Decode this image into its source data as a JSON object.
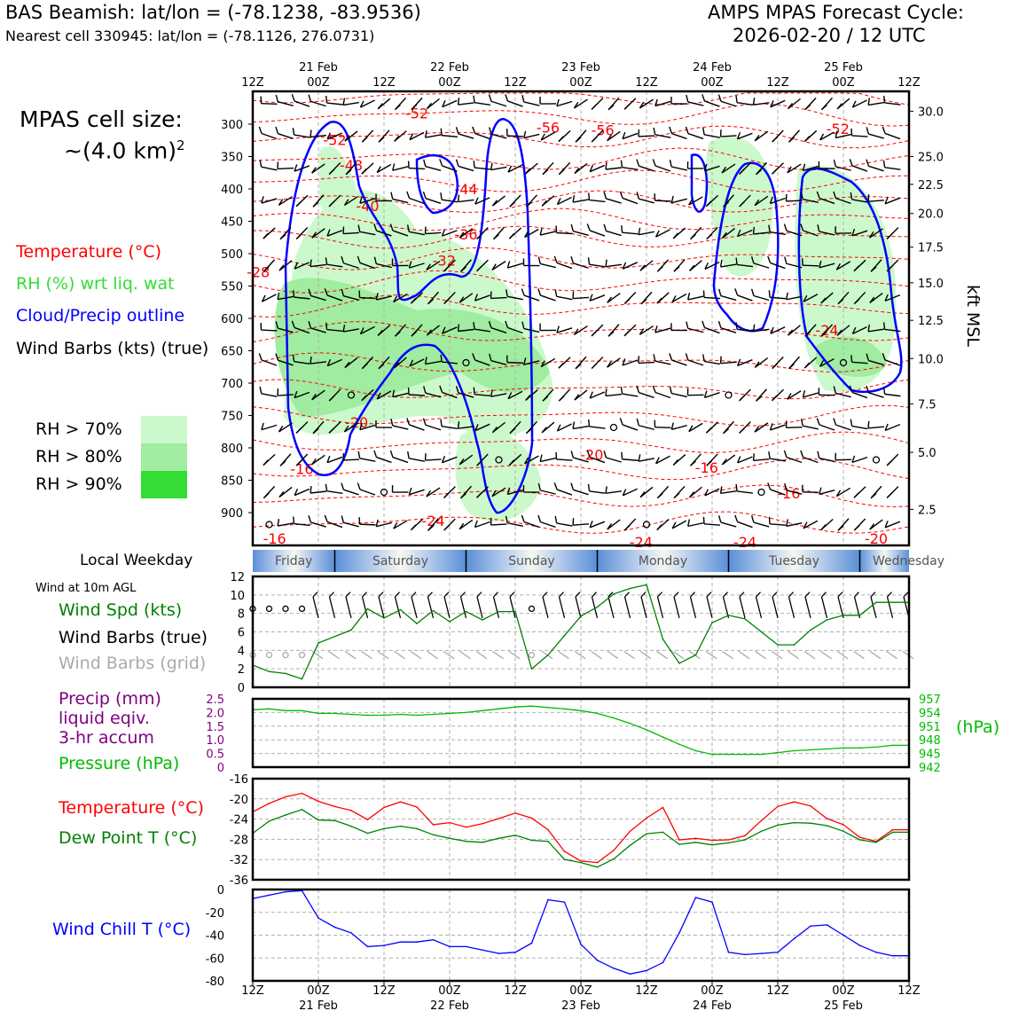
{
  "header": {
    "station_line": "BAS Beamish: lat/lon = (-78.1238, -83.9536)",
    "nearest_line": "Nearest cell 330945: lat/lon = (-78.1126, 276.0731)",
    "cycle_line1": "AMPS MPAS Forecast Cycle:",
    "cycle_line2": "2026-02-20 / 12 UTC"
  },
  "legend": {
    "cell_size_line1": "MPAS cell size:",
    "cell_size_line2": "~(4.0 km)",
    "cell_size_sup": "2",
    "temperature": "Temperature (°C)",
    "rh": "RH (%) wrt liq. wat",
    "cloud": "Cloud/Precip outline",
    "barbs": "Wind Barbs (kts) (true)",
    "rh_levels": [
      {
        "label": "RH > 70%",
        "color": "#ccf9cc"
      },
      {
        "label": "RH > 80%",
        "color": "#a0eca0"
      },
      {
        "label": "RH > 90%",
        "color": "#33dd33"
      }
    ],
    "local_weekday": "Local Weekday",
    "wind_10m": "Wind at 10m AGL",
    "wind_spd": "Wind Spd (kts)",
    "wind_barbs_true": "Wind Barbs (true)",
    "wind_barbs_grid": "Wind Barbs (grid)",
    "precip_line1": "Precip (mm)",
    "precip_line2": "liquid eqiv.",
    "precip_line3": "3-hr accum",
    "pressure": "Pressure (hPa)",
    "temp2": "Temperature (°C)",
    "dewpoint": "Dew Point T (°C)",
    "windchill": "Wind Chill T (°C)"
  },
  "colors": {
    "temperature": "#ff0000",
    "rh": "#33dd33",
    "cloud": "#0000ff",
    "dewpoint": "#008000",
    "pressure": "#00bb00",
    "precip": "#800080",
    "windchill": "#0000ff",
    "grid_barbs": "#aaaaaa"
  },
  "chart_data": {
    "time_axis": {
      "top_labels": [
        "12Z",
        "00Z",
        "12Z",
        "00Z",
        "12Z",
        "00Z",
        "12Z",
        "00Z",
        "12Z",
        "00Z",
        "12Z"
      ],
      "date_labels": [
        "21 Feb",
        "22 Feb",
        "23 Feb",
        "24 Feb",
        "25 Feb"
      ],
      "hours": [
        0,
        12,
        24,
        36,
        48,
        60,
        72,
        84,
        96,
        108,
        120
      ]
    },
    "weekdays": [
      "Friday",
      "Saturday",
      "Sunday",
      "Monday",
      "Tuesday",
      "Wednesday"
    ],
    "cross_section": {
      "type": "contour",
      "y_axis_label": "kft MSL",
      "pressure_ticks": [
        300,
        350,
        400,
        450,
        500,
        550,
        600,
        650,
        700,
        750,
        800,
        850,
        900
      ],
      "height_ticks": [
        {
          "kft": "30.0",
          "p": 280
        },
        {
          "kft": "25.0",
          "p": 350
        },
        {
          "kft": "22.5",
          "p": 393
        },
        {
          "kft": "20.0",
          "p": 438
        },
        {
          "kft": "17.5",
          "p": 490
        },
        {
          "kft": "15.0",
          "p": 545
        },
        {
          "kft": "12.5",
          "p": 603
        },
        {
          "kft": "10.0",
          "p": 662
        },
        {
          "kft": "7.5",
          "p": 732
        },
        {
          "kft": "5.0",
          "p": 807
        },
        {
          "kft": "2.5",
          "p": 895
        }
      ],
      "temperature_labels": [
        {
          "t": 30,
          "p": 283,
          "label": "-52"
        },
        {
          "t": 54,
          "p": 305,
          "label": "-56"
        },
        {
          "t": 64,
          "p": 309,
          "label": "-56"
        },
        {
          "t": 107,
          "p": 307,
          "label": "-52"
        },
        {
          "t": 15,
          "p": 324,
          "label": "-52"
        },
        {
          "t": 18,
          "p": 363,
          "label": "-48"
        },
        {
          "t": 39,
          "p": 400,
          "label": "-44"
        },
        {
          "t": 21,
          "p": 426,
          "label": "-40"
        },
        {
          "t": 39,
          "p": 470,
          "label": "-36"
        },
        {
          "t": 35,
          "p": 510,
          "label": "-32"
        },
        {
          "t": 1,
          "p": 528,
          "label": "-28"
        },
        {
          "t": 105,
          "p": 618,
          "label": "-24"
        },
        {
          "t": 19,
          "p": 760,
          "label": "-20"
        },
        {
          "t": 62,
          "p": 810,
          "label": "-20"
        },
        {
          "t": 83,
          "p": 830,
          "label": "-16"
        },
        {
          "t": 9,
          "p": 832,
          "label": "-16"
        },
        {
          "t": 98,
          "p": 870,
          "label": "-16"
        },
        {
          "t": 33,
          "p": 912,
          "label": "-24"
        },
        {
          "t": 71,
          "p": 945,
          "label": "-24"
        },
        {
          "t": 4,
          "p": 940,
          "label": "-16"
        },
        {
          "t": 90,
          "p": 945,
          "label": "-24"
        },
        {
          "t": 114,
          "p": 940,
          "label": "-20"
        }
      ]
    },
    "wind_speed": {
      "type": "line",
      "ylim": [
        0,
        12
      ],
      "yticks": [
        0,
        2,
        4,
        6,
        8,
        10,
        12
      ],
      "x": [
        0,
        3,
        6,
        9,
        12,
        15,
        18,
        21,
        24,
        27,
        30,
        33,
        36,
        39,
        42,
        45,
        48,
        51,
        54,
        57,
        60,
        63,
        66,
        69,
        72,
        75,
        78,
        81,
        84,
        87,
        90,
        93,
        96,
        99,
        102,
        105,
        108,
        111,
        114,
        117,
        120
      ],
      "values": [
        2.4,
        1.7,
        1.5,
        0.9,
        4.8,
        5.5,
        6.2,
        8.5,
        7.5,
        8.4,
        6.9,
        8.3,
        7.1,
        8.2,
        7.3,
        8.2,
        8.2,
        2.0,
        3.5,
        5.6,
        7.7,
        8.7,
        10.1,
        10.7,
        11.1,
        5.2,
        2.6,
        3.5,
        7.0,
        7.8,
        7.4,
        6.0,
        4.6,
        4.6,
        6.2,
        7.3,
        7.8,
        7.8,
        9.2,
        9.2,
        9.2
      ]
    },
    "precip_pressure": {
      "type": "line",
      "precip_ylim": [
        0,
        2.5
      ],
      "precip_yticks": [
        "0",
        "0.5",
        "1.0",
        "1.5",
        "2.0",
        "2.5"
      ],
      "pressure_ylim": [
        942,
        957
      ],
      "pressure_yticks": [
        "942",
        "945",
        "948",
        "951",
        "954",
        "957"
      ],
      "pressure_unit": "(hPa)",
      "x": [
        0,
        3,
        6,
        9,
        12,
        15,
        18,
        21,
        24,
        27,
        30,
        33,
        36,
        39,
        42,
        45,
        48,
        51,
        54,
        57,
        60,
        63,
        66,
        69,
        72,
        75,
        78,
        81,
        84,
        87,
        90,
        93,
        96,
        99,
        102,
        105,
        108,
        111,
        114,
        117,
        120
      ],
      "pressure": [
        954.6,
        954.8,
        954.4,
        954.4,
        953.8,
        953.8,
        953.6,
        953.4,
        953.4,
        953.6,
        953.4,
        953.6,
        953.8,
        954.0,
        954.4,
        954.8,
        955.2,
        955.4,
        955.1,
        954.8,
        954.4,
        953.8,
        952.8,
        951.6,
        950.2,
        948.6,
        947.0,
        945.6,
        944.8,
        944.8,
        944.8,
        944.8,
        945.2,
        945.6,
        945.8,
        946.0,
        946.2,
        946.2,
        946.4,
        946.8,
        946.8
      ]
    },
    "temperature": {
      "type": "line",
      "ylim": [
        -36,
        -16
      ],
      "yticks": [
        -36,
        -32,
        -28,
        -24,
        -20,
        -16
      ],
      "x": [
        0,
        3,
        6,
        9,
        12,
        15,
        18,
        21,
        24,
        27,
        30,
        33,
        36,
        39,
        42,
        45,
        48,
        51,
        54,
        57,
        60,
        63,
        66,
        69,
        72,
        75,
        78,
        81,
        84,
        87,
        90,
        93,
        96,
        99,
        102,
        105,
        108,
        111,
        114,
        117,
        120
      ],
      "series": [
        {
          "name": "Temperature (°C)",
          "values": [
            -22.6,
            -20.9,
            -19.6,
            -18.9,
            -20.5,
            -21.5,
            -22.3,
            -24.1,
            -21.7,
            -20.6,
            -21.6,
            -25.1,
            -24.7,
            -25.6,
            -24.9,
            -23.9,
            -22.8,
            -23.8,
            -26.1,
            -30.4,
            -32.3,
            -32.6,
            -30.2,
            -26.4,
            -23.8,
            -21.7,
            -28.1,
            -27.8,
            -28.2,
            -28.1,
            -27.3,
            -24.3,
            -21.5,
            -20.6,
            -21.4,
            -23.9,
            -25.1,
            -27.6,
            -28.4,
            -26.1,
            -26.1
          ]
        },
        {
          "name": "Dew Point T (°C)",
          "values": [
            -26.8,
            -24.4,
            -23.2,
            -22.1,
            -24.2,
            -24.3,
            -25.4,
            -26.8,
            -25.9,
            -25.4,
            -25.9,
            -27.1,
            -27.8,
            -28.4,
            -28.6,
            -27.8,
            -27.2,
            -28.2,
            -28.4,
            -32.0,
            -32.6,
            -33.5,
            -31.9,
            -29.2,
            -26.9,
            -26.6,
            -29.0,
            -28.6,
            -29.1,
            -28.7,
            -28.1,
            -26.4,
            -25.2,
            -24.7,
            -24.8,
            -25.3,
            -26.4,
            -28.1,
            -28.6,
            -26.6,
            -26.6
          ]
        }
      ]
    },
    "wind_chill": {
      "type": "line",
      "ylim": [
        -80,
        0
      ],
      "yticks": [
        -80,
        -60,
        -40,
        -20,
        0
      ],
      "x": [
        0,
        3,
        6,
        9,
        12,
        15,
        18,
        21,
        24,
        27,
        30,
        33,
        36,
        39,
        42,
        45,
        48,
        51,
        54,
        57,
        60,
        63,
        66,
        69,
        72,
        75,
        78,
        81,
        84,
        87,
        90,
        93,
        96,
        99,
        102,
        105,
        108,
        111,
        114,
        117,
        120
      ],
      "values": [
        -8.0,
        -5.0,
        -2.0,
        -1.0,
        -25.0,
        -33.0,
        -38.0,
        -50.0,
        -49.0,
        -46.0,
        -46.0,
        -44.0,
        -50.0,
        -50.0,
        -53.0,
        -56.0,
        -55.0,
        -47.0,
        -9.0,
        -11.0,
        -48.0,
        -62.0,
        -69.0,
        -74.0,
        -71.0,
        -64.0,
        -38.0,
        -7.0,
        -11.0,
        -55.0,
        -57.0,
        -56.0,
        -55.0,
        -43.0,
        -32.0,
        -31.0,
        -40.0,
        -49.0,
        -55.0,
        -58.0,
        -58.0
      ]
    }
  }
}
